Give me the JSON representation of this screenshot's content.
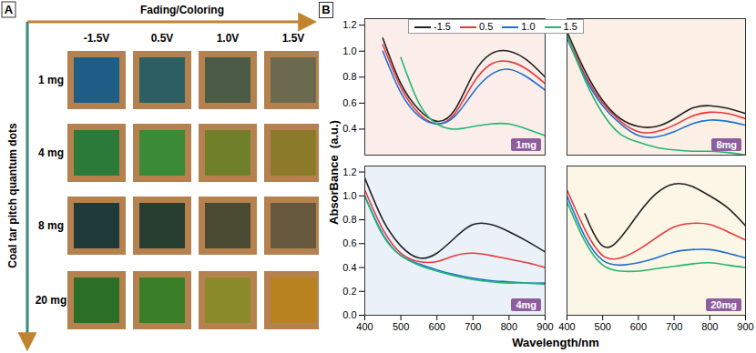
{
  "panel_a": {
    "label": "A",
    "arrow_label": "Fading/Coloring",
    "axis_label": "Coal tar pitch quantum dots",
    "columns": [
      "-1.5V",
      "0.5V",
      "1.0V",
      "1.5V"
    ],
    "rows": [
      {
        "label": "1 mg",
        "colors": [
          "#1e5e86",
          "#2b5f62",
          "#4b5b45",
          "#6b6a4e"
        ]
      },
      {
        "label": "4 mg",
        "colors": [
          "#2c7a3a",
          "#3b8a35",
          "#6f7f2a",
          "#8a7a2a"
        ]
      },
      {
        "label": "8 mg",
        "colors": [
          "#1e3b3a",
          "#263f30",
          "#4a4a32",
          "#65583c"
        ]
      },
      {
        "label": "20 mg",
        "colors": [
          "#2a6e28",
          "#3a7f28",
          "#8a8a2a",
          "#b8821e"
        ]
      }
    ]
  },
  "panel_b": {
    "label": "B",
    "x_label": "Wavelength/nm",
    "y_label": "AbsorBance  (a.u.)",
    "legend": "top"
  },
  "chart_data": [
    {
      "type": "line",
      "title": "1mg",
      "x": [
        400,
        450,
        500,
        550,
        600,
        650,
        700,
        750,
        800,
        850,
        900
      ],
      "series": [
        {
          "name": "-1.5",
          "color": "#222222",
          "values": [
            null,
            1.1,
            0.75,
            0.55,
            0.46,
            0.55,
            0.82,
            0.98,
            1.0,
            0.93,
            0.8
          ]
        },
        {
          "name": "0.5",
          "color": "#e8383d",
          "values": [
            null,
            1.05,
            0.72,
            0.52,
            0.44,
            0.52,
            0.75,
            0.9,
            0.92,
            0.86,
            0.75
          ]
        },
        {
          "name": "1.0",
          "color": "#1f6fd0",
          "values": [
            null,
            1.0,
            0.68,
            0.5,
            0.44,
            0.5,
            0.68,
            0.82,
            0.86,
            0.8,
            0.7
          ]
        },
        {
          "name": "1.5",
          "color": "#22b573",
          "values": [
            null,
            null,
            0.95,
            0.6,
            0.44,
            0.4,
            0.42,
            0.44,
            0.44,
            0.4,
            0.35
          ]
        }
      ],
      "xlim": [
        400,
        900
      ],
      "ylim": [
        0.2,
        1.25
      ],
      "xticks": [
        400,
        500,
        600,
        700,
        800,
        900
      ],
      "yticks": [
        0.4,
        0.6,
        0.8,
        {
          "value": 1,
          "label": "1.0"
        },
        1.2
      ],
      "tick_labels": "y"
    },
    {
      "type": "line",
      "title": "8mg",
      "x": [
        400,
        450,
        500,
        550,
        600,
        650,
        700,
        750,
        800,
        850,
        900
      ],
      "series": [
        {
          "name": "-1.5",
          "color": "#222222",
          "values": [
            1.15,
            0.85,
            0.62,
            0.48,
            0.42,
            0.42,
            0.48,
            0.56,
            0.58,
            0.56,
            0.52
          ]
        },
        {
          "name": "0.5",
          "color": "#e8383d",
          "values": [
            1.12,
            0.82,
            0.6,
            0.46,
            0.38,
            0.38,
            0.43,
            0.5,
            0.53,
            0.52,
            0.48
          ]
        },
        {
          "name": "1.0",
          "color": "#1f6fd0",
          "values": [
            1.1,
            0.8,
            0.58,
            0.44,
            0.35,
            0.34,
            0.38,
            0.44,
            0.47,
            0.46,
            0.43
          ]
        },
        {
          "name": "1.5",
          "color": "#22b573",
          "values": [
            1.12,
            0.78,
            0.52,
            0.36,
            0.3,
            0.26,
            0.24,
            0.23,
            0.23,
            0.22,
            0.2
          ]
        }
      ],
      "xlim": [
        400,
        900
      ],
      "ylim": [
        0.2,
        1.25
      ],
      "xticks": [
        400,
        500,
        600,
        700,
        800,
        900
      ],
      "yticks": [
        0.4,
        0.6,
        0.8,
        {
          "value": 1,
          "label": "1.0"
        },
        1.2
      ],
      "tick_labels": false
    },
    {
      "type": "line",
      "title": "4mg",
      "x": [
        400,
        450,
        500,
        550,
        600,
        650,
        700,
        750,
        800,
        850,
        900
      ],
      "series": [
        {
          "name": "-1.5",
          "color": "#222222",
          "values": [
            1.15,
            0.8,
            0.58,
            0.48,
            0.52,
            0.65,
            0.76,
            0.76,
            0.7,
            0.62,
            0.53
          ]
        },
        {
          "name": "0.5",
          "color": "#e8383d",
          "values": [
            1.05,
            0.72,
            0.52,
            0.45,
            0.45,
            0.5,
            0.52,
            0.5,
            0.47,
            0.44,
            0.4
          ]
        },
        {
          "name": "1.0",
          "color": "#1f6fd0",
          "values": [
            1.0,
            0.68,
            0.5,
            0.43,
            0.38,
            0.34,
            0.31,
            0.29,
            0.28,
            0.27,
            0.27
          ]
        },
        {
          "name": "1.5",
          "color": "#22b573",
          "values": [
            1.0,
            0.67,
            0.5,
            0.42,
            0.37,
            0.33,
            0.3,
            0.28,
            0.27,
            0.27,
            0.26
          ]
        }
      ],
      "xlim": [
        400,
        900
      ],
      "ylim": [
        0,
        1.25
      ],
      "xticks": [
        400,
        500,
        600,
        700,
        800,
        900
      ],
      "yticks": [
        {
          "value": 0,
          "label": "0.0"
        },
        0.2,
        0.4,
        0.6,
        0.8,
        {
          "value": 1,
          "label": "1.0"
        },
        1.2
      ],
      "tick_labels": true
    },
    {
      "type": "line",
      "title": "20mg",
      "x": [
        400,
        450,
        500,
        550,
        600,
        650,
        700,
        750,
        800,
        850,
        900
      ],
      "series": [
        {
          "name": "-1.5",
          "color": "#222222",
          "values": [
            null,
            0.85,
            0.58,
            0.65,
            0.85,
            1.02,
            1.1,
            1.08,
            1.0,
            0.9,
            0.75
          ]
        },
        {
          "name": "0.5",
          "color": "#e8383d",
          "values": [
            1.05,
            0.72,
            0.5,
            0.48,
            0.55,
            0.65,
            0.74,
            0.77,
            0.76,
            0.7,
            0.63
          ]
        },
        {
          "name": "1.0",
          "color": "#1f6fd0",
          "values": [
            1.0,
            0.66,
            0.46,
            0.42,
            0.44,
            0.48,
            0.53,
            0.55,
            0.55,
            0.52,
            0.48
          ]
        },
        {
          "name": "1.5",
          "color": "#22b573",
          "values": [
            0.95,
            0.62,
            0.42,
            0.37,
            0.37,
            0.39,
            0.41,
            0.43,
            0.44,
            0.42,
            0.4
          ]
        }
      ],
      "xlim": [
        400,
        900
      ],
      "ylim": [
        0,
        1.25
      ],
      "xticks": [
        400,
        500,
        600,
        700,
        800,
        900
      ],
      "yticks": [
        {
          "value": 0,
          "label": "0.0"
        },
        0.2,
        0.4,
        0.6,
        0.8,
        {
          "value": 1,
          "label": "1.0"
        },
        1.2
      ],
      "tick_labels": "x"
    }
  ]
}
